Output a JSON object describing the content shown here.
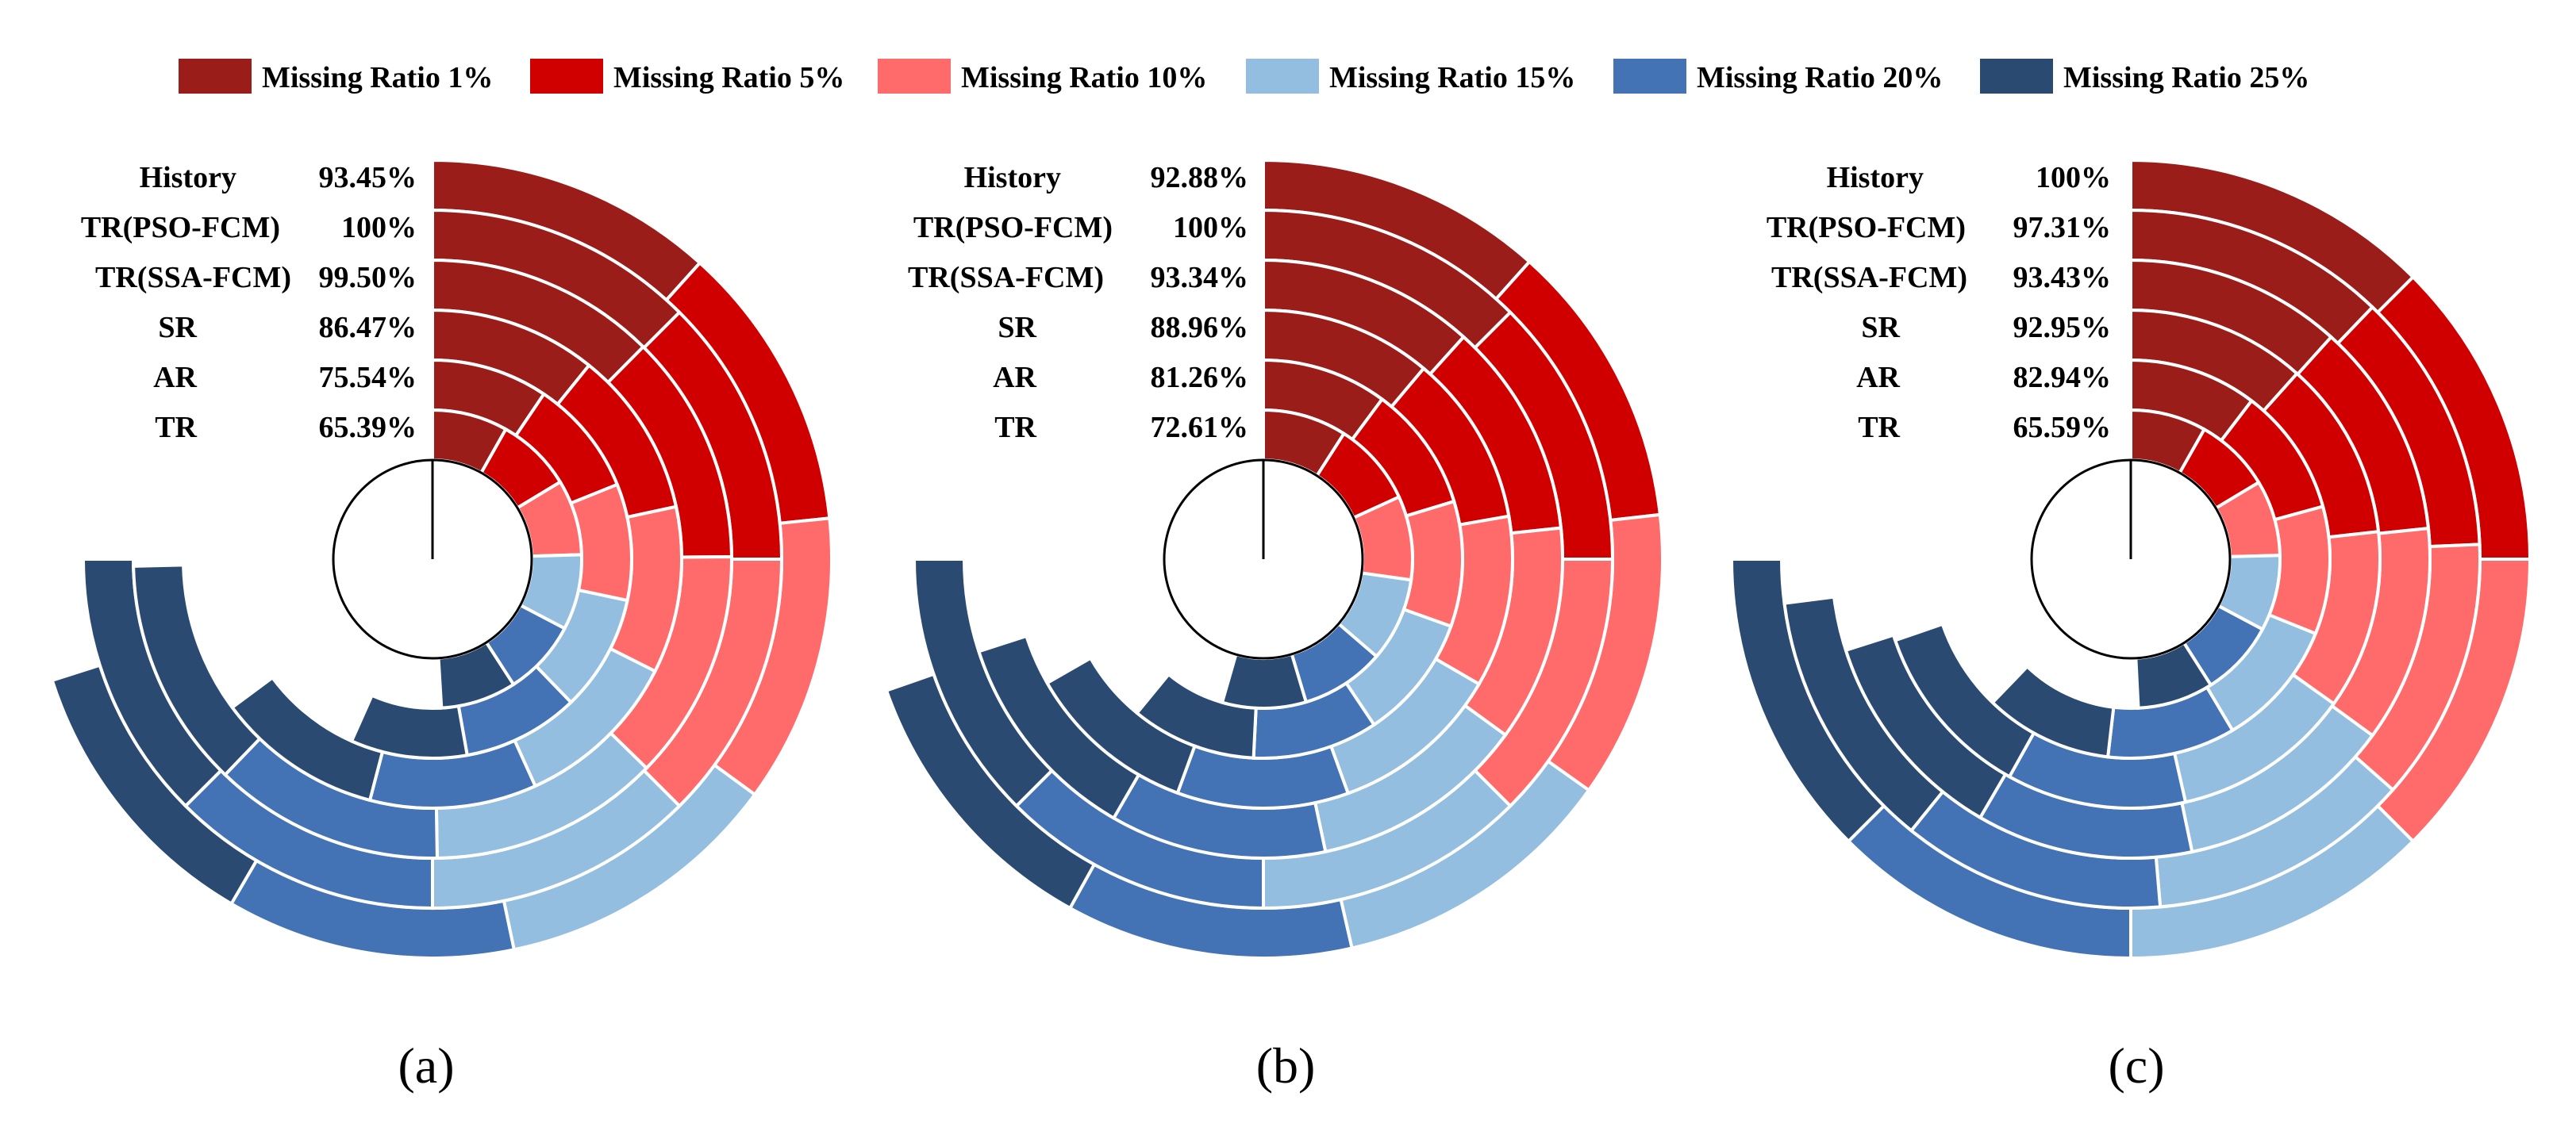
{
  "legend": {
    "items": [
      {
        "label": "Missing Ratio 1%",
        "color": "#9B1D1A"
      },
      {
        "label": "Missing Ratio 5%",
        "color": "#D00000"
      },
      {
        "label": "Missing Ratio 10%",
        "color": "#FF6B6B"
      },
      {
        "label": "Missing Ratio 15%",
        "color": "#93BEDF"
      },
      {
        "label": "Missing Ratio 20%",
        "color": "#4372B5"
      },
      {
        "label": "Missing Ratio 25%",
        "color": "#2A4A72"
      }
    ]
  },
  "chart_data": [
    {
      "type": "radial-bar",
      "panel_label": "(a)",
      "methods": [
        "History",
        "TR(PSO-FCM)",
        "TR(SSA-FCM)",
        "SR",
        "AR",
        "TR"
      ],
      "accuracy_labels": [
        "93.45%",
        "100%",
        "99.50%",
        "86.47%",
        "75.54%",
        "65.39%"
      ],
      "accuracy_values": [
        93.45,
        100,
        99.5,
        86.47,
        75.54,
        65.39
      ],
      "category_colors": [
        "#9B1D1A",
        "#D00000",
        "#FF6B6B",
        "#93BEDF",
        "#4372B5",
        "#2A4A72"
      ]
    },
    {
      "type": "radial-bar",
      "panel_label": "(b)",
      "methods": [
        "History",
        "TR(PSO-FCM)",
        "TR(SSA-FCM)",
        "SR",
        "AR",
        "TR"
      ],
      "accuracy_labels": [
        "92.88%",
        "100%",
        "93.34%",
        "88.96%",
        "81.26%",
        "72.61%"
      ],
      "accuracy_values": [
        92.88,
        100,
        93.34,
        88.96,
        81.26,
        72.61
      ],
      "category_colors": [
        "#9B1D1A",
        "#D00000",
        "#FF6B6B",
        "#93BEDF",
        "#4372B5",
        "#2A4A72"
      ]
    },
    {
      "type": "radial-bar",
      "panel_label": "(c)",
      "methods": [
        "History",
        "TR(PSO-FCM)",
        "TR(SSA-FCM)",
        "SR",
        "AR",
        "TR"
      ],
      "accuracy_labels": [
        "100%",
        "97.31%",
        "93.43%",
        "92.95%",
        "82.94%",
        "65.59%"
      ],
      "accuracy_values": [
        100,
        97.31,
        93.43,
        92.95,
        82.94,
        65.59
      ],
      "category_colors": [
        "#9B1D1A",
        "#D00000",
        "#FF6B6B",
        "#93BEDF",
        "#4372B5",
        "#2A4A72"
      ]
    }
  ]
}
